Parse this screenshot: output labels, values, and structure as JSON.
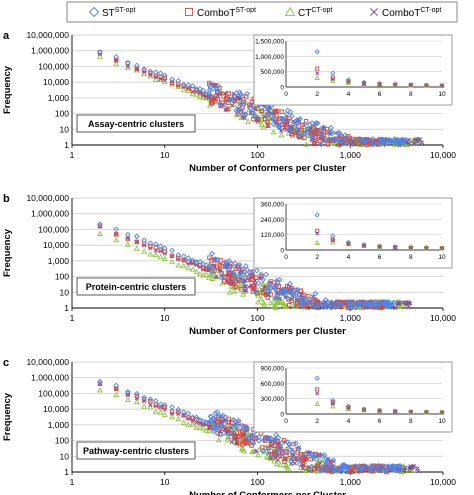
{
  "legend": {
    "entries": [
      {
        "symbol": "diamond",
        "color": "#4a86e8",
        "base": "ST",
        "sup": "ST-opt"
      },
      {
        "symbol": "square",
        "color": "#e0443a",
        "base": "ComboT",
        "sup": "ST-opt"
      },
      {
        "symbol": "triangle",
        "color": "#8dc63f",
        "base": "CT",
        "sup": "CT-opt"
      },
      {
        "symbol": "cross",
        "color": "#7b4ea3",
        "base": "ComboT",
        "sup": "CT-opt"
      }
    ]
  },
  "chart_data": [
    {
      "panel_letter": "a",
      "type": "scatter",
      "xscale": "log",
      "yscale": "log",
      "xlim": [
        1,
        10000
      ],
      "ylim": [
        1,
        10000000
      ],
      "xticks": [
        "1",
        "10",
        "100",
        "1,000",
        "10,000"
      ],
      "yticks": [
        "1",
        "10",
        "100",
        "1,000",
        "10,000",
        "100,000",
        "1,000,000",
        "10,000,000"
      ],
      "xlabel": "Number of Conformers per Cluster",
      "ylabel": "Frequency",
      "annotation": "Assay-centric clusters",
      "main_xmax": [
        4000,
        2500,
        5500,
        6000
      ],
      "main_amp": [
        1000000,
        700000,
        400000,
        600000
      ],
      "inset": {
        "type": "scatter",
        "xlim": [
          0,
          10
        ],
        "ylim": [
          0,
          1500000
        ],
        "xticks": [
          "0",
          "2",
          "4",
          "6",
          "8",
          "10"
        ],
        "yticks": [
          "0",
          "500,000",
          "1,000,000",
          "1,500,000"
        ],
        "series": [
          {
            "name": "ST",
            "x": [
              2,
              3,
              4,
              5,
              6,
              7,
              8,
              9,
              10
            ],
            "y": [
              1150000,
              450000,
              230000,
              150000,
              110000,
              90000,
              70000,
              60000,
              50000
            ]
          },
          {
            "name": "ComboT ST",
            "x": [
              2,
              3,
              4,
              5,
              6,
              7,
              8,
              9,
              10
            ],
            "y": [
              600000,
              300000,
              180000,
              120000,
              90000,
              70000,
              60000,
              50000,
              40000
            ]
          },
          {
            "name": "CT",
            "x": [
              2,
              3,
              4,
              5,
              6,
              7,
              8,
              9,
              10
            ],
            "y": [
              300000,
              200000,
              140000,
              100000,
              80000,
              65000,
              55000,
              45000,
              40000
            ]
          },
          {
            "name": "ComboT CT",
            "x": [
              2,
              3,
              4,
              5,
              6,
              7,
              8,
              9,
              10
            ],
            "y": [
              450000,
              250000,
              160000,
              110000,
              85000,
              68000,
              57000,
              48000,
              42000
            ]
          }
        ]
      }
    },
    {
      "panel_letter": "b",
      "type": "scatter",
      "xscale": "log",
      "yscale": "log",
      "xlim": [
        1,
        10000
      ],
      "ylim": [
        1,
        10000000
      ],
      "xticks": [
        "1",
        "10",
        "100",
        "1,000",
        "10,000"
      ],
      "yticks": [
        "1",
        "10",
        "100",
        "1,000",
        "10,000",
        "100,000",
        "1,000,000",
        "10,000,000"
      ],
      "xlabel": "Number of Conformers per Cluster",
      "ylabel": "Frequency",
      "annotation": "Protein-centric clusters",
      "main_xmax": [
        3000,
        2500,
        4000,
        4500
      ],
      "main_amp": [
        250000,
        150000,
        50000,
        130000
      ],
      "inset": {
        "type": "scatter",
        "xlim": [
          0,
          10
        ],
        "ylim": [
          0,
          360000
        ],
        "xticks": [
          "0",
          "2",
          "4",
          "6",
          "8",
          "10"
        ],
        "yticks": [
          "0",
          "120,000",
          "240,000",
          "360,000"
        ],
        "series": [
          {
            "name": "ST",
            "x": [
              2,
              3,
              4,
              5,
              6,
              7,
              8,
              9,
              10
            ],
            "y": [
              275000,
              110000,
              60000,
              40000,
              30000,
              25000,
              20000,
              18000,
              15000
            ]
          },
          {
            "name": "ComboT ST",
            "x": [
              2,
              3,
              4,
              5,
              6,
              7,
              8,
              9,
              10
            ],
            "y": [
              150000,
              80000,
              50000,
              35000,
              27000,
              22000,
              18000,
              16000,
              14000
            ]
          },
          {
            "name": "CT",
            "x": [
              2,
              3,
              4,
              5,
              6,
              7,
              8,
              9,
              10
            ],
            "y": [
              55000,
              60000,
              45000,
              32000,
              25000,
              20000,
              17000,
              15000,
              13000
            ]
          },
          {
            "name": "ComboT CT",
            "x": [
              2,
              3,
              4,
              5,
              6,
              7,
              8,
              9,
              10
            ],
            "y": [
              130000,
              75000,
              48000,
              34000,
              26000,
              21000,
              18000,
              15000,
              13000
            ]
          }
        ]
      }
    },
    {
      "panel_letter": "c",
      "type": "scatter",
      "xscale": "log",
      "yscale": "log",
      "xlim": [
        1,
        10000
      ],
      "ylim": [
        1,
        10000000
      ],
      "xticks": [
        "1",
        "10",
        "100",
        "1,000",
        "10,000"
      ],
      "yticks": [
        "1",
        "10",
        "100",
        "1,000",
        "10,000",
        "100,000",
        "1,000,000",
        "10,000,000"
      ],
      "xlabel": "Number of Conformers per Cluster",
      "ylabel": "Frequency",
      "annotation": "Pathway-centric clusters",
      "main_xmax": [
        3500,
        2500,
        5000,
        5500
      ],
      "main_amp": [
        700000,
        500000,
        200000,
        400000
      ],
      "inset": {
        "type": "scatter",
        "xlim": [
          0,
          10
        ],
        "ylim": [
          0,
          900000
        ],
        "xticks": [
          "0",
          "2",
          "4",
          "6",
          "8",
          "10"
        ],
        "yticks": [
          "0",
          "300,000",
          "600,000",
          "900,000"
        ],
        "series": [
          {
            "name": "ST",
            "x": [
              2,
              3,
              4,
              5,
              6,
              7,
              8,
              9,
              10
            ],
            "y": [
              700000,
              270000,
              150000,
              95000,
              70000,
              55000,
              45000,
              38000,
              32000
            ]
          },
          {
            "name": "ComboT ST",
            "x": [
              2,
              3,
              4,
              5,
              6,
              7,
              8,
              9,
              10
            ],
            "y": [
              480000,
              230000,
              130000,
              85000,
              65000,
              50000,
              42000,
              36000,
              30000
            ]
          },
          {
            "name": "CT",
            "x": [
              2,
              3,
              4,
              5,
              6,
              7,
              8,
              9,
              10
            ],
            "y": [
              200000,
              150000,
              100000,
              75000,
              58000,
              46000,
              38000,
              32000,
              28000
            ]
          },
          {
            "name": "ComboT CT",
            "x": [
              2,
              3,
              4,
              5,
              6,
              7,
              8,
              9,
              10
            ],
            "y": [
              400000,
              200000,
              120000,
              80000,
              60000,
              48000,
              40000,
              34000,
              29000
            ]
          }
        ]
      }
    }
  ]
}
